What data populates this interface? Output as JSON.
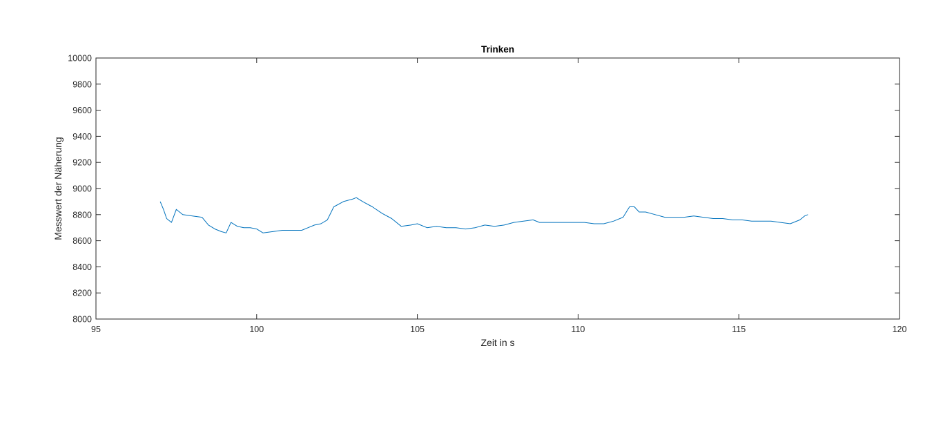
{
  "chart_data": {
    "type": "line",
    "title": "Trinken",
    "xlabel": "Zeit in s",
    "ylabel": "Messwert der Näherung",
    "xlim": [
      95,
      120
    ],
    "ylim": [
      8000,
      10000
    ],
    "xticks": [
      "95",
      "100",
      "105",
      "110",
      "115",
      "120"
    ],
    "yticks": [
      "8000",
      "8200",
      "8400",
      "8600",
      "8800",
      "9000",
      "9200",
      "9400",
      "9600",
      "9800",
      "10000"
    ],
    "grid": false,
    "series": [
      {
        "color": "#0072BD",
        "x": [
          97.0,
          97.1,
          97.2,
          97.35,
          97.5,
          97.7,
          98.0,
          98.3,
          98.5,
          98.7,
          98.9,
          99.05,
          99.2,
          99.4,
          99.6,
          99.8,
          100.0,
          100.2,
          100.5,
          100.8,
          101.1,
          101.4,
          101.6,
          101.8,
          102.0,
          102.2,
          102.4,
          102.7,
          103.0,
          103.1,
          103.3,
          103.6,
          103.9,
          104.2,
          104.5,
          104.8,
          105.0,
          105.3,
          105.6,
          105.9,
          106.2,
          106.5,
          106.8,
          107.1,
          107.4,
          107.7,
          108.0,
          108.3,
          108.6,
          108.8,
          109.0,
          109.3,
          109.6,
          109.9,
          110.2,
          110.5,
          110.8,
          111.1,
          111.4,
          111.6,
          111.75,
          111.9,
          112.1,
          112.4,
          112.7,
          113.0,
          113.3,
          113.6,
          113.9,
          114.2,
          114.5,
          114.8,
          115.1,
          115.4,
          115.7,
          116.0,
          116.3,
          116.6,
          116.9,
          117.05,
          117.15
        ],
        "y": [
          8900,
          8840,
          8770,
          8740,
          8840,
          8800,
          8790,
          8780,
          8720,
          8690,
          8670,
          8660,
          8740,
          8710,
          8700,
          8700,
          8690,
          8660,
          8670,
          8680,
          8680,
          8680,
          8700,
          8720,
          8730,
          8760,
          8860,
          8900,
          8920,
          8930,
          8900,
          8860,
          8810,
          8770,
          8710,
          8720,
          8730,
          8700,
          8710,
          8700,
          8700,
          8690,
          8700,
          8720,
          8710,
          8720,
          8740,
          8750,
          8760,
          8740,
          8740,
          8740,
          8740,
          8740,
          8740,
          8730,
          8730,
          8750,
          8780,
          8860,
          8860,
          8820,
          8820,
          8800,
          8780,
          8780,
          8780,
          8790,
          8780,
          8770,
          8770,
          8760,
          8760,
          8750,
          8750,
          8750,
          8740,
          8730,
          8760,
          8790,
          8800
        ]
      }
    ]
  }
}
